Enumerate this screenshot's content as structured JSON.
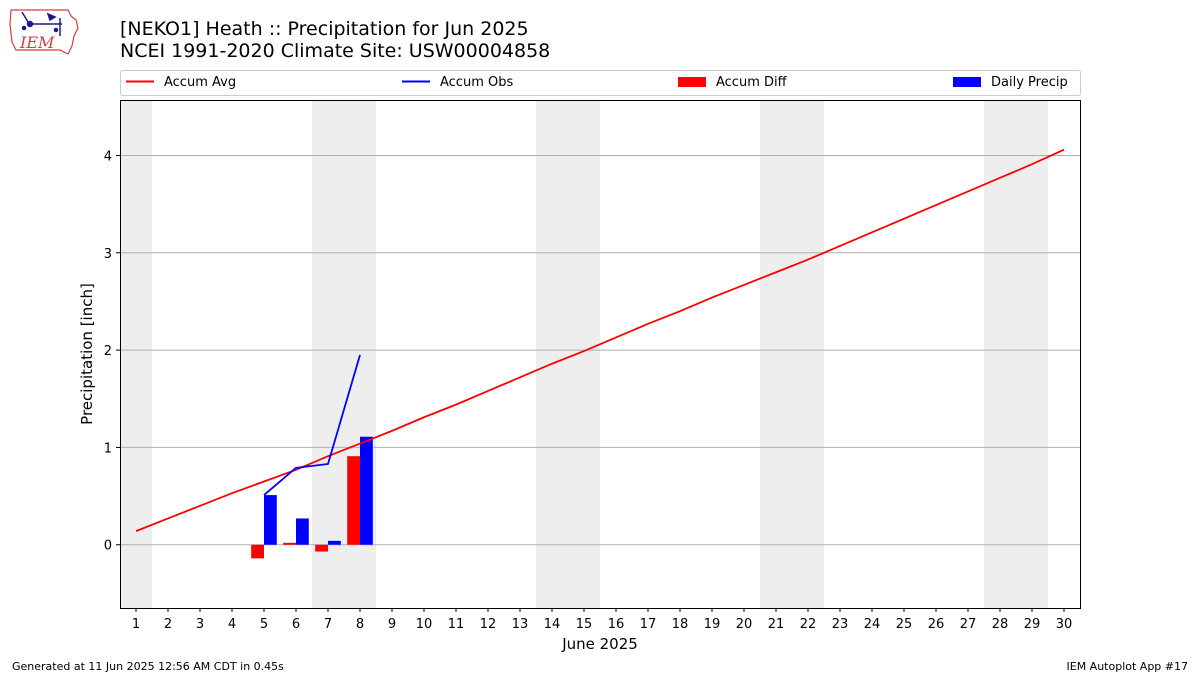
{
  "header": {
    "title_line1": "[NEKO1] Heath :: Precipitation for Jun 2025",
    "title_line2": "NCEI 1991-2020 Climate Site: USW00004858",
    "logo_text": "IEM"
  },
  "footer": {
    "generated": "Generated at 11 Jun 2025 12:56 AM CDT in 0.45s",
    "app": "IEM Autoplot App #17"
  },
  "colors": {
    "avg": "#ff0000",
    "obs": "#0000ff",
    "diff": "#ff0000",
    "daily": "#0000ff",
    "weekend": "#eeeeee",
    "grid": "#b0b0b0"
  },
  "chart_data": {
    "type": "line",
    "xlabel": "June 2025",
    "ylabel": "Precipitation [inch]",
    "xlim": [
      0.5,
      30.5
    ],
    "ylim": [
      -0.65,
      4.57
    ],
    "x_ticks": [
      1,
      2,
      3,
      4,
      5,
      6,
      7,
      8,
      9,
      10,
      11,
      12,
      13,
      14,
      15,
      16,
      17,
      18,
      19,
      20,
      21,
      22,
      23,
      24,
      25,
      26,
      27,
      28,
      29,
      30
    ],
    "y_ticks": [
      0,
      1,
      2,
      3,
      4
    ],
    "grid": "y",
    "legend_position": "top",
    "weekend_days": [
      1,
      7,
      8,
      14,
      15,
      21,
      22,
      28,
      29
    ],
    "series": [
      {
        "name": "Accum Avg",
        "kind": "line",
        "x": [
          1,
          2,
          3,
          4,
          5,
          6,
          7,
          8,
          9,
          10,
          11,
          12,
          13,
          14,
          15,
          16,
          17,
          18,
          19,
          20,
          21,
          22,
          23,
          24,
          25,
          26,
          27,
          28,
          29,
          30
        ],
        "values": [
          0.14,
          0.27,
          0.4,
          0.53,
          0.65,
          0.77,
          0.91,
          1.04,
          1.17,
          1.31,
          1.44,
          1.58,
          1.72,
          1.86,
          1.99,
          2.13,
          2.27,
          2.4,
          2.54,
          2.67,
          2.8,
          2.93,
          3.07,
          3.21,
          3.35,
          3.49,
          3.63,
          3.77,
          3.91,
          4.06
        ]
      },
      {
        "name": "Accum Obs",
        "kind": "line",
        "x": [
          5,
          6,
          7,
          8
        ],
        "values": [
          0.51,
          0.79,
          0.83,
          1.95
        ]
      },
      {
        "name": "Accum Diff",
        "kind": "bar",
        "x": [
          5,
          6,
          7,
          8
        ],
        "values": [
          -0.14,
          0.02,
          -0.07,
          0.91
        ]
      },
      {
        "name": "Daily Precip",
        "kind": "bar",
        "x": [
          5,
          6,
          7,
          8
        ],
        "values": [
          0.51,
          0.27,
          0.04,
          1.11
        ]
      }
    ]
  }
}
